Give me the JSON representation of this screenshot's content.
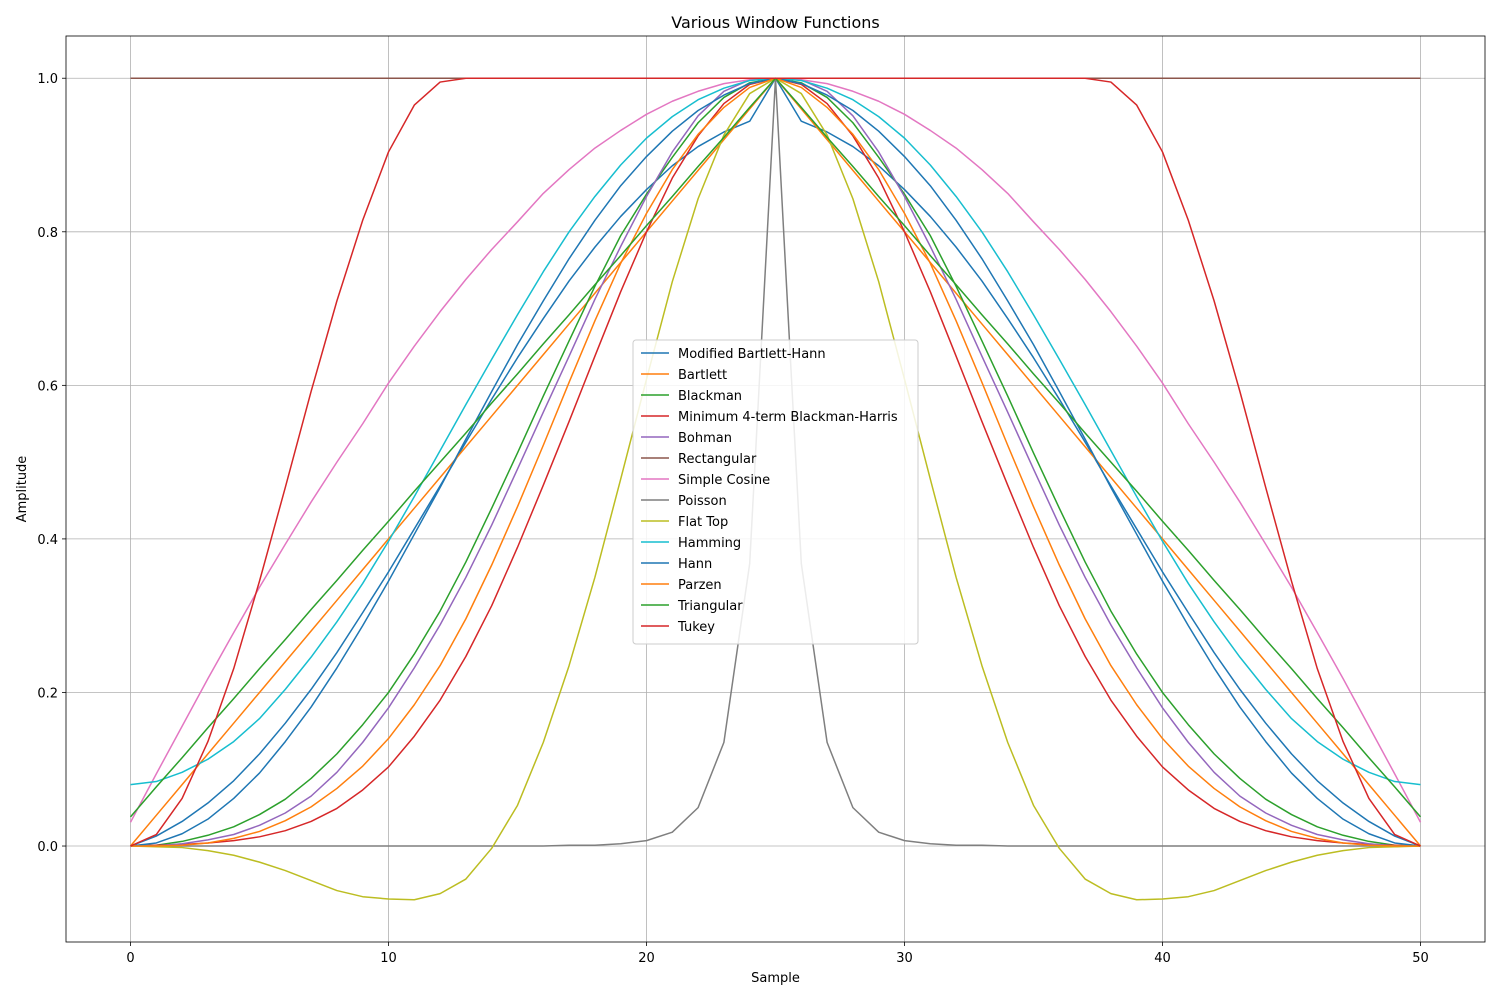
{
  "chart_data": {
    "type": "line",
    "title": "Various Window Functions",
    "xlabel": "Sample",
    "ylabel": "Amplitude",
    "xlim": [
      -2.5,
      52.5
    ],
    "ylim": [
      -0.125,
      1.055
    ],
    "xticks": [
      0,
      10,
      20,
      30,
      40,
      50
    ],
    "xtick_labels": [
      "0",
      "10",
      "20",
      "30",
      "40",
      "50"
    ],
    "yticks": [
      0.0,
      0.2,
      0.4,
      0.6,
      0.8,
      1.0
    ],
    "ytick_labels": [
      "0.0",
      "0.2",
      "0.4",
      "0.6",
      "0.8",
      "1.0"
    ],
    "grid": true,
    "legend_position": "center",
    "x": [
      0,
      1,
      2,
      3,
      4,
      5,
      6,
      7,
      8,
      9,
      10,
      11,
      12,
      13,
      14,
      15,
      16,
      17,
      18,
      19,
      20,
      21,
      22,
      23,
      24,
      25,
      26,
      27,
      28,
      29,
      30,
      31,
      32,
      33,
      34,
      35,
      36,
      37,
      38,
      39,
      40,
      41,
      42,
      43,
      44,
      45,
      46,
      47,
      48,
      49,
      50
    ],
    "series": [
      {
        "name": "Modified Bartlett-Hann",
        "color": "#1f77b4",
        "values": [
          0,
          0.013,
          0.032,
          0.056,
          0.085,
          0.12,
          0.16,
          0.204,
          0.252,
          0.304,
          0.357,
          0.413,
          0.469,
          0.526,
          0.582,
          0.636,
          0.687,
          0.736,
          0.78,
          0.82,
          0.855,
          0.886,
          0.911,
          0.93,
          0.944,
          1.0,
          0.944,
          0.93,
          0.911,
          0.886,
          0.855,
          0.82,
          0.78,
          0.736,
          0.687,
          0.636,
          0.582,
          0.526,
          0.469,
          0.413,
          0.357,
          0.304,
          0.252,
          0.204,
          0.16,
          0.12,
          0.085,
          0.056,
          0.032,
          0.013,
          0
        ]
      },
      {
        "name": "Bartlett",
        "color": "#ff7f0e",
        "values": [
          0,
          0.04,
          0.08,
          0.12,
          0.16,
          0.2,
          0.24,
          0.28,
          0.32,
          0.36,
          0.4,
          0.44,
          0.48,
          0.52,
          0.56,
          0.6,
          0.64,
          0.68,
          0.72,
          0.76,
          0.8,
          0.84,
          0.88,
          0.92,
          0.96,
          1.0,
          0.96,
          0.92,
          0.88,
          0.84,
          0.8,
          0.76,
          0.72,
          0.68,
          0.64,
          0.6,
          0.56,
          0.52,
          0.48,
          0.44,
          0.4,
          0.36,
          0.32,
          0.28,
          0.24,
          0.2,
          0.16,
          0.12,
          0.08,
          0.04,
          0
        ]
      },
      {
        "name": "Blackman",
        "color": "#2ca02c",
        "values": [
          0,
          0.001,
          0.006,
          0.014,
          0.025,
          0.041,
          0.061,
          0.088,
          0.12,
          0.158,
          0.2,
          0.25,
          0.306,
          0.37,
          0.44,
          0.512,
          0.586,
          0.658,
          0.729,
          0.795,
          0.849,
          0.897,
          0.942,
          0.975,
          0.994,
          1.0,
          0.994,
          0.975,
          0.942,
          0.897,
          0.849,
          0.795,
          0.729,
          0.658,
          0.586,
          0.512,
          0.44,
          0.37,
          0.306,
          0.25,
          0.2,
          0.158,
          0.12,
          0.088,
          0.061,
          0.041,
          0.025,
          0.014,
          0.006,
          0.001,
          0
        ]
      },
      {
        "name": "Minimum 4-term Blackman-Harris",
        "color": "#d62728",
        "values": [
          0,
          0.001,
          0.002,
          0.004,
          0.007,
          0.012,
          0.02,
          0.032,
          0.049,
          0.073,
          0.103,
          0.143,
          0.19,
          0.247,
          0.313,
          0.389,
          0.47,
          0.553,
          0.638,
          0.722,
          0.8,
          0.87,
          0.925,
          0.967,
          0.992,
          1.0,
          0.992,
          0.967,
          0.925,
          0.87,
          0.8,
          0.722,
          0.638,
          0.553,
          0.47,
          0.389,
          0.313,
          0.247,
          0.19,
          0.143,
          0.103,
          0.073,
          0.049,
          0.032,
          0.02,
          0.012,
          0.007,
          0.004,
          0.002,
          0.001,
          0
        ]
      },
      {
        "name": "Bohman",
        "color": "#9467bd",
        "values": [
          0,
          0,
          0.003,
          0.008,
          0.015,
          0.027,
          0.043,
          0.065,
          0.096,
          0.135,
          0.18,
          0.232,
          0.288,
          0.35,
          0.418,
          0.491,
          0.565,
          0.638,
          0.712,
          0.781,
          0.846,
          0.904,
          0.951,
          0.983,
          0.998,
          1.0,
          0.998,
          0.983,
          0.951,
          0.904,
          0.846,
          0.781,
          0.712,
          0.638,
          0.565,
          0.491,
          0.418,
          0.35,
          0.288,
          0.232,
          0.18,
          0.135,
          0.096,
          0.065,
          0.043,
          0.027,
          0.015,
          0.008,
          0.003,
          0,
          0
        ]
      },
      {
        "name": "Rectangular",
        "color": "#8c564b",
        "values": [
          1,
          1,
          1,
          1,
          1,
          1,
          1,
          1,
          1,
          1,
          1,
          1,
          1,
          1,
          1,
          1,
          1,
          1,
          1,
          1,
          1,
          1,
          1,
          1,
          1,
          1,
          1,
          1,
          1,
          1,
          1,
          1,
          1,
          1,
          1,
          1,
          1,
          1,
          1,
          1,
          1,
          1,
          1,
          1,
          1,
          1,
          1,
          1,
          1,
          1,
          1
        ]
      },
      {
        "name": "Simple Cosine",
        "color": "#e377c2",
        "values": [
          0.031,
          0.094,
          0.156,
          0.218,
          0.278,
          0.337,
          0.393,
          0.448,
          0.5,
          0.55,
          0.603,
          0.651,
          0.696,
          0.738,
          0.777,
          0.813,
          0.85,
          0.881,
          0.909,
          0.932,
          0.953,
          0.97,
          0.983,
          0.993,
          0.998,
          1.0,
          0.998,
          0.993,
          0.983,
          0.97,
          0.953,
          0.932,
          0.909,
          0.881,
          0.85,
          0.813,
          0.777,
          0.738,
          0.696,
          0.651,
          0.603,
          0.55,
          0.5,
          0.448,
          0.393,
          0.337,
          0.278,
          0.218,
          0.156,
          0.094,
          0.031
        ]
      },
      {
        "name": "Poisson",
        "color": "#7f7f7f",
        "values": [
          0,
          0,
          0,
          0,
          0,
          0,
          0,
          0,
          0,
          0,
          0,
          0,
          0,
          0,
          0,
          0,
          0,
          0.001,
          0.001,
          0.003,
          0.007,
          0.018,
          0.05,
          0.135,
          0.368,
          1.0,
          0.368,
          0.135,
          0.05,
          0.018,
          0.007,
          0.003,
          0.001,
          0.001,
          0,
          0,
          0,
          0,
          0,
          0,
          0,
          0,
          0,
          0,
          0,
          0,
          0,
          0,
          0,
          0,
          0
        ]
      },
      {
        "name": "Flat Top",
        "color": "#bcbd22",
        "values": [
          0,
          -0.001,
          -0.002,
          -0.006,
          -0.012,
          -0.021,
          -0.032,
          -0.045,
          -0.058,
          -0.066,
          -0.069,
          -0.07,
          -0.062,
          -0.043,
          -0.003,
          0.053,
          0.135,
          0.235,
          0.35,
          0.478,
          0.608,
          0.735,
          0.843,
          0.926,
          0.98,
          1.0,
          0.98,
          0.926,
          0.843,
          0.735,
          0.608,
          0.478,
          0.35,
          0.235,
          0.135,
          0.053,
          -0.003,
          -0.043,
          -0.062,
          -0.07,
          -0.069,
          -0.066,
          -0.058,
          -0.045,
          -0.032,
          -0.021,
          -0.012,
          -0.006,
          -0.002,
          -0.001,
          0
        ]
      },
      {
        "name": "Hamming",
        "color": "#17becf",
        "values": [
          0.08,
          0.084,
          0.096,
          0.113,
          0.136,
          0.166,
          0.204,
          0.246,
          0.292,
          0.342,
          0.397,
          0.455,
          0.515,
          0.575,
          0.634,
          0.692,
          0.748,
          0.8,
          0.846,
          0.887,
          0.922,
          0.95,
          0.972,
          0.987,
          0.997,
          1.0,
          0.997,
          0.987,
          0.972,
          0.95,
          0.922,
          0.887,
          0.846,
          0.8,
          0.748,
          0.692,
          0.634,
          0.575,
          0.515,
          0.455,
          0.397,
          0.342,
          0.292,
          0.246,
          0.204,
          0.166,
          0.136,
          0.113,
          0.096,
          0.084,
          0.08
        ]
      },
      {
        "name": "Hann",
        "color": "#1f77b4",
        "values": [
          0,
          0.004,
          0.016,
          0.035,
          0.062,
          0.095,
          0.136,
          0.181,
          0.232,
          0.287,
          0.345,
          0.406,
          0.467,
          0.53,
          0.592,
          0.653,
          0.71,
          0.765,
          0.815,
          0.86,
          0.898,
          0.931,
          0.958,
          0.978,
          0.993,
          1.0,
          0.993,
          0.978,
          0.958,
          0.931,
          0.898,
          0.86,
          0.815,
          0.765,
          0.71,
          0.653,
          0.592,
          0.53,
          0.467,
          0.406,
          0.345,
          0.287,
          0.232,
          0.181,
          0.136,
          0.095,
          0.062,
          0.035,
          0.016,
          0.004,
          0
        ]
      },
      {
        "name": "Parzen",
        "color": "#ff7f0e",
        "values": [
          0,
          0,
          0.001,
          0.004,
          0.01,
          0.019,
          0.033,
          0.051,
          0.075,
          0.104,
          0.14,
          0.184,
          0.235,
          0.296,
          0.366,
          0.442,
          0.522,
          0.604,
          0.684,
          0.759,
          0.824,
          0.881,
          0.927,
          0.962,
          0.988,
          1.0,
          0.988,
          0.962,
          0.927,
          0.881,
          0.824,
          0.759,
          0.684,
          0.604,
          0.522,
          0.442,
          0.366,
          0.296,
          0.235,
          0.184,
          0.14,
          0.104,
          0.075,
          0.051,
          0.033,
          0.019,
          0.01,
          0.004,
          0.001,
          0,
          0
        ]
      },
      {
        "name": "Triangular",
        "color": "#2ca02c",
        "values": [
          0.038,
          0.077,
          0.115,
          0.154,
          0.192,
          0.231,
          0.269,
          0.308,
          0.346,
          0.385,
          0.423,
          0.462,
          0.5,
          0.538,
          0.577,
          0.615,
          0.654,
          0.692,
          0.731,
          0.769,
          0.808,
          0.846,
          0.885,
          0.923,
          0.962,
          1.0,
          0.962,
          0.923,
          0.885,
          0.846,
          0.808,
          0.769,
          0.731,
          0.692,
          0.654,
          0.615,
          0.577,
          0.538,
          0.5,
          0.462,
          0.423,
          0.385,
          0.346,
          0.308,
          0.269,
          0.231,
          0.192,
          0.154,
          0.115,
          0.077,
          0.038
        ]
      },
      {
        "name": "Tukey",
        "color": "#d62728",
        "values": [
          0,
          0.015,
          0.062,
          0.136,
          0.231,
          0.345,
          0.467,
          0.592,
          0.71,
          0.815,
          0.904,
          0.965,
          0.995,
          1,
          1,
          1,
          1,
          1,
          1,
          1,
          1,
          1,
          1,
          1,
          1,
          1,
          1,
          1,
          1,
          1,
          1,
          1,
          1,
          1,
          1,
          1,
          1,
          1,
          0.995,
          0.965,
          0.904,
          0.815,
          0.71,
          0.592,
          0.467,
          0.345,
          0.231,
          0.136,
          0.062,
          0.015,
          0
        ]
      }
    ]
  }
}
